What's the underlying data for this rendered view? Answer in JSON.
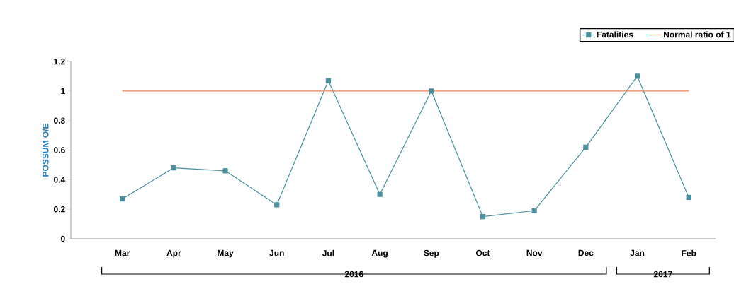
{
  "chart_data": {
    "type": "line",
    "ylabel": "POSSUM O/E",
    "categories": [
      "Mar",
      "Apr",
      "May",
      "Jun",
      "Jul",
      "Aug",
      "Sep",
      "Oct",
      "Nov",
      "Dec",
      "Jan",
      "Feb"
    ],
    "series": [
      {
        "name": "Fatalities",
        "color": "#4a8f9c",
        "values": [
          0.27,
          0.48,
          0.46,
          0.23,
          1.07,
          0.3,
          1.0,
          0.15,
          0.19,
          0.62,
          1.1,
          0.28
        ]
      }
    ],
    "ref_lines": [
      {
        "axis": "y",
        "value": 1,
        "label": "Normal ratio of 1",
        "color": "#e8825a"
      }
    ],
    "annotations": [
      "2016",
      "2017"
    ],
    "ylim": [
      0,
      1.2
    ],
    "yticks": [
      0,
      0.2,
      0.4,
      0.6,
      0.8,
      1,
      1.2
    ],
    "marker": "square",
    "legend": "top right",
    "grid": false
  }
}
